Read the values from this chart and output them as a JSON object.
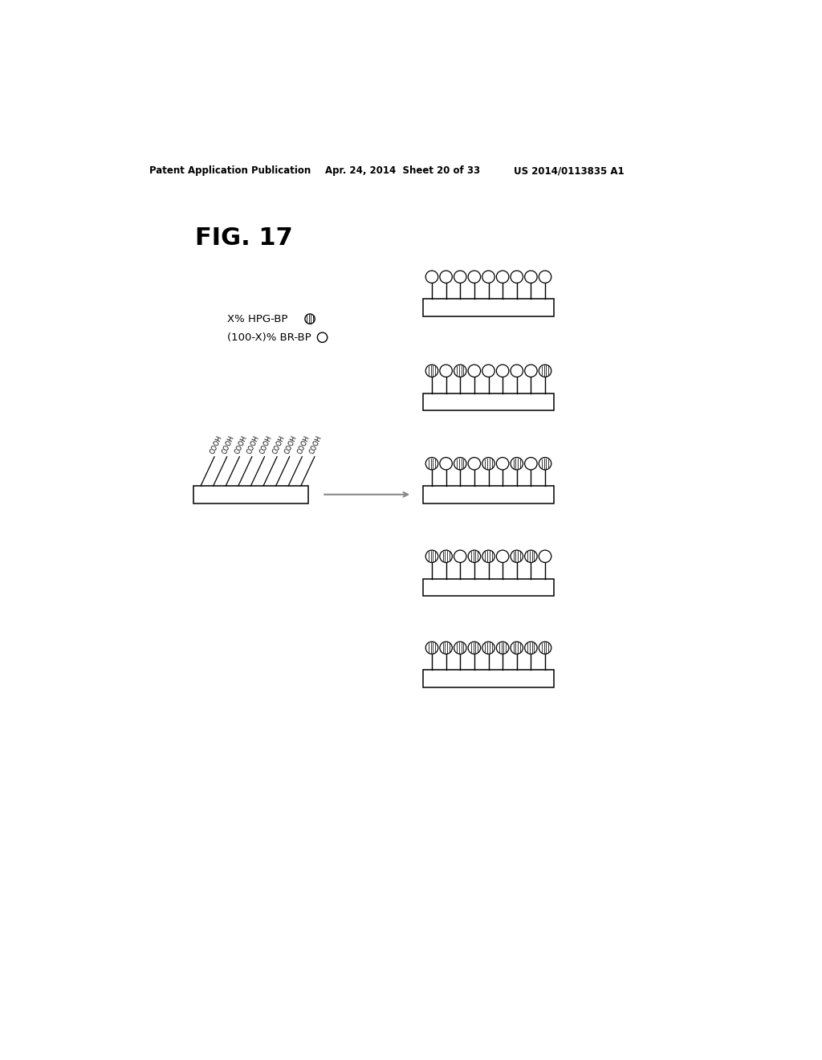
{
  "bg_color": "#ffffff",
  "header_left": "Patent Application Publication",
  "header_mid": "Apr. 24, 2014  Sheet 20 of 33",
  "header_right": "US 2014/0113835 A1",
  "fig_label": "FIG. 17",
  "legend_line1": "X% HPG-BP",
  "legend_line2": "(100-X)% BR-BP",
  "num_cooh": 9,
  "rows": [
    {
      "hatched": [
        0,
        0,
        0,
        0,
        0,
        0,
        0,
        0,
        0
      ],
      "n": 9
    },
    {
      "hatched": [
        1,
        0,
        1,
        0,
        0,
        0,
        0,
        0,
        1
      ],
      "n": 9
    },
    {
      "hatched": [
        1,
        0,
        1,
        0,
        1,
        0,
        1,
        0,
        1
      ],
      "n": 9
    },
    {
      "hatched": [
        1,
        1,
        0,
        1,
        1,
        0,
        1,
        1,
        0
      ],
      "n": 9
    },
    {
      "hatched": [
        1,
        1,
        1,
        1,
        1,
        1,
        1,
        1,
        1
      ],
      "n": 9
    }
  ]
}
